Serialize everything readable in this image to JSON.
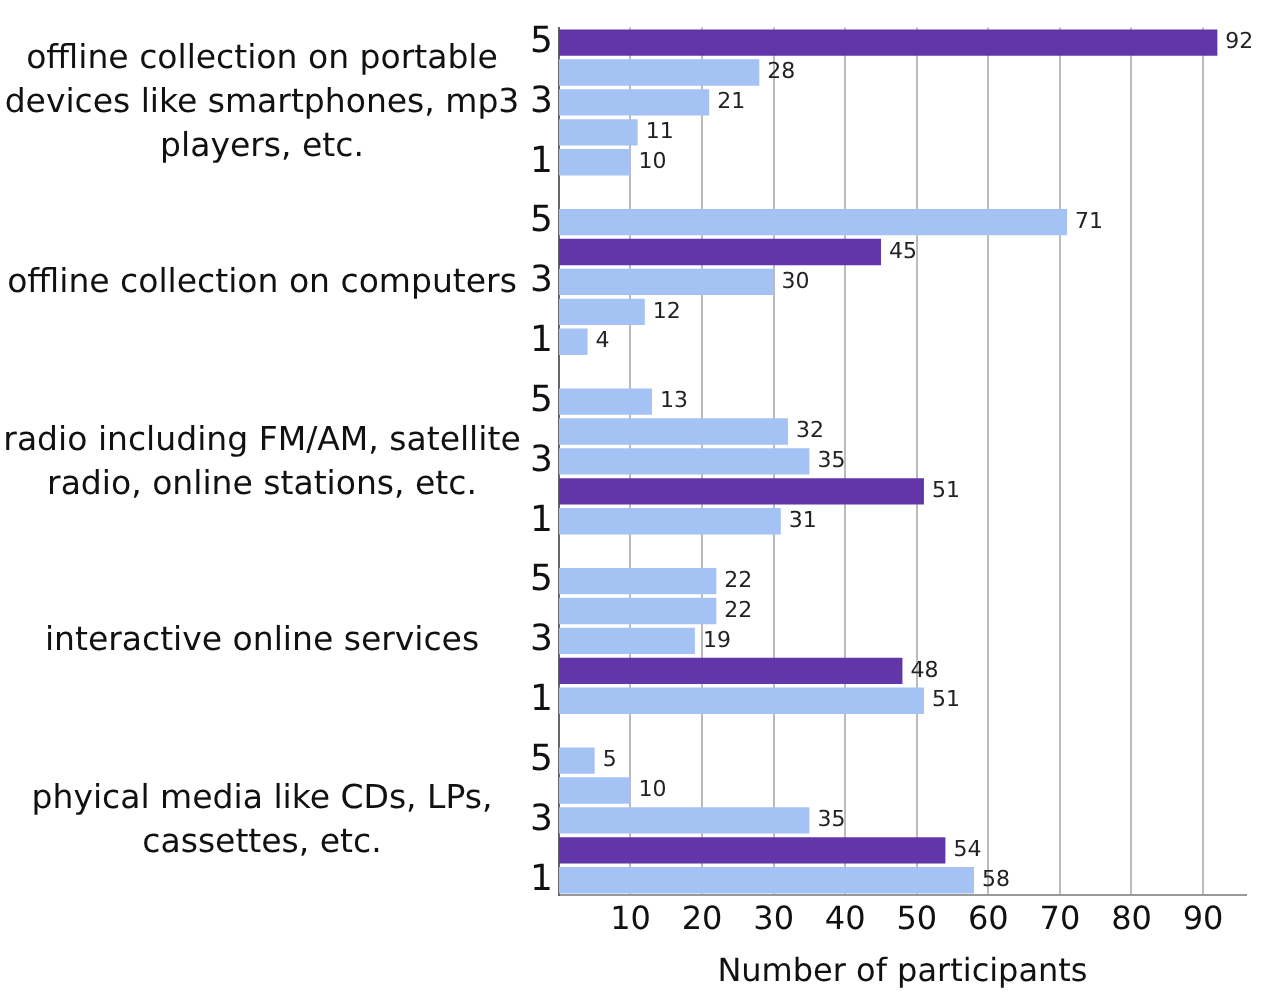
{
  "chart_data": {
    "type": "bar",
    "orientation": "horizontal",
    "xlabel": "Number of participants",
    "categories": [
      "5",
      null,
      "3",
      null,
      "1",
      null,
      "5",
      null,
      "3",
      null,
      "1",
      null,
      "5",
      null,
      "3",
      null,
      "1",
      null,
      "5",
      null,
      "3",
      null,
      "1",
      null,
      "5",
      null,
      "3",
      null,
      "1"
    ],
    "values": [
      92,
      28,
      21,
      11,
      10,
      null,
      71,
      45,
      30,
      12,
      4,
      null,
      13,
      32,
      35,
      51,
      31,
      null,
      22,
      22,
      19,
      48,
      51,
      null,
      5,
      10,
      35,
      54,
      58
    ],
    "colors": [
      "#6236a8",
      "#a4c2f4",
      "#a4c2f4",
      "#a4c2f4",
      "#a4c2f4",
      "#a4c2f4",
      "#a4c2f4",
      "#6236a8",
      "#a4c2f4",
      "#a4c2f4",
      "#a4c2f4",
      "#a4c2f4",
      "#a4c2f4",
      "#a4c2f4",
      "#a4c2f4",
      "#6236a8",
      "#a4c2f4",
      "#a4c2f4",
      "#a4c2f4",
      "#a4c2f4",
      "#a4c2f4",
      "#6236a8",
      "#a4c2f4",
      "#a4c2f4",
      "#a4c2f4",
      "#a4c2f4",
      "#a4c2f4",
      "#6236a8",
      "#a4c2f4"
    ],
    "annotations": [
      "offline collection on portable devices like smartphones, mp3 players, etc.",
      "offline collection on computers",
      "radio including FM/AM, satellite radio, online stations, etc.",
      "interactive online services",
      "phyical media like CDs, LPs, cassettes, etc."
    ],
    "xlim": [
      0,
      96
    ],
    "xticks": [
      10,
      20,
      30,
      40,
      50,
      60,
      70,
      80,
      90
    ],
    "grid": "x",
    "data_labels": true
  }
}
